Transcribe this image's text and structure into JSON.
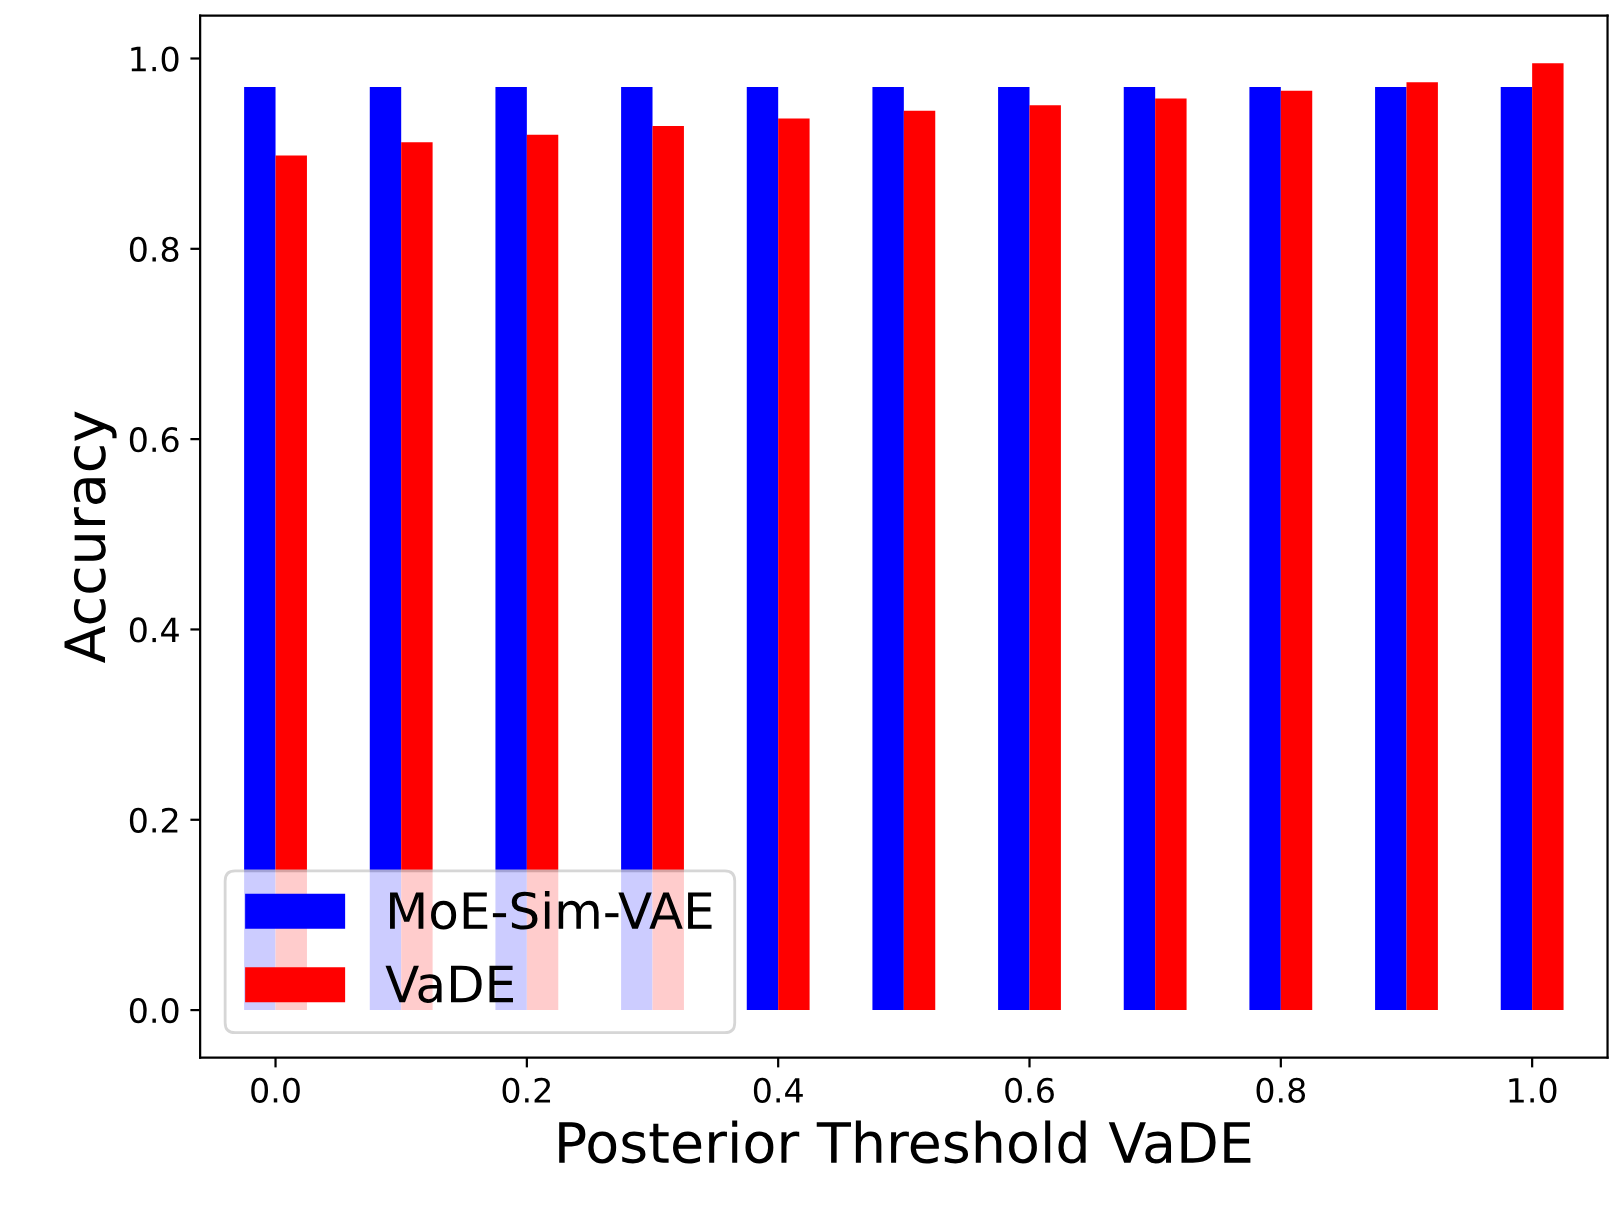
{
  "chart_data": {
    "type": "bar",
    "xlabel": "Posterior Threshold VaDE",
    "ylabel": "Accuracy",
    "x": [
      0.0,
      0.1,
      0.2,
      0.3,
      0.4,
      0.5,
      0.6,
      0.7,
      0.8,
      0.9,
      1.0
    ],
    "series": [
      {
        "name": "MoE-Sim-VAE",
        "color": "#0000ff",
        "values": [
          0.97,
          0.97,
          0.97,
          0.97,
          0.97,
          0.97,
          0.97,
          0.97,
          0.97,
          0.97,
          0.97
        ]
      },
      {
        "name": "VaDE",
        "color": "#ff0000",
        "values": [
          0.898,
          0.912,
          0.92,
          0.929,
          0.937,
          0.945,
          0.951,
          0.958,
          0.966,
          0.975,
          0.995
        ]
      }
    ],
    "xlim": [
      -0.06,
      1.06
    ],
    "ylim": [
      -0.05,
      1.045
    ],
    "xticks": [
      {
        "value": 0,
        "label": "0.0"
      },
      0.2,
      0.4,
      0.6,
      0.8,
      {
        "value": 1,
        "label": "1.0"
      }
    ],
    "yticks": [
      {
        "value": 0,
        "label": "0.0"
      },
      0.2,
      0.4,
      0.6,
      0.8,
      {
        "value": 1,
        "label": "1.0"
      }
    ],
    "grid": false,
    "legend": "bottom left"
  }
}
